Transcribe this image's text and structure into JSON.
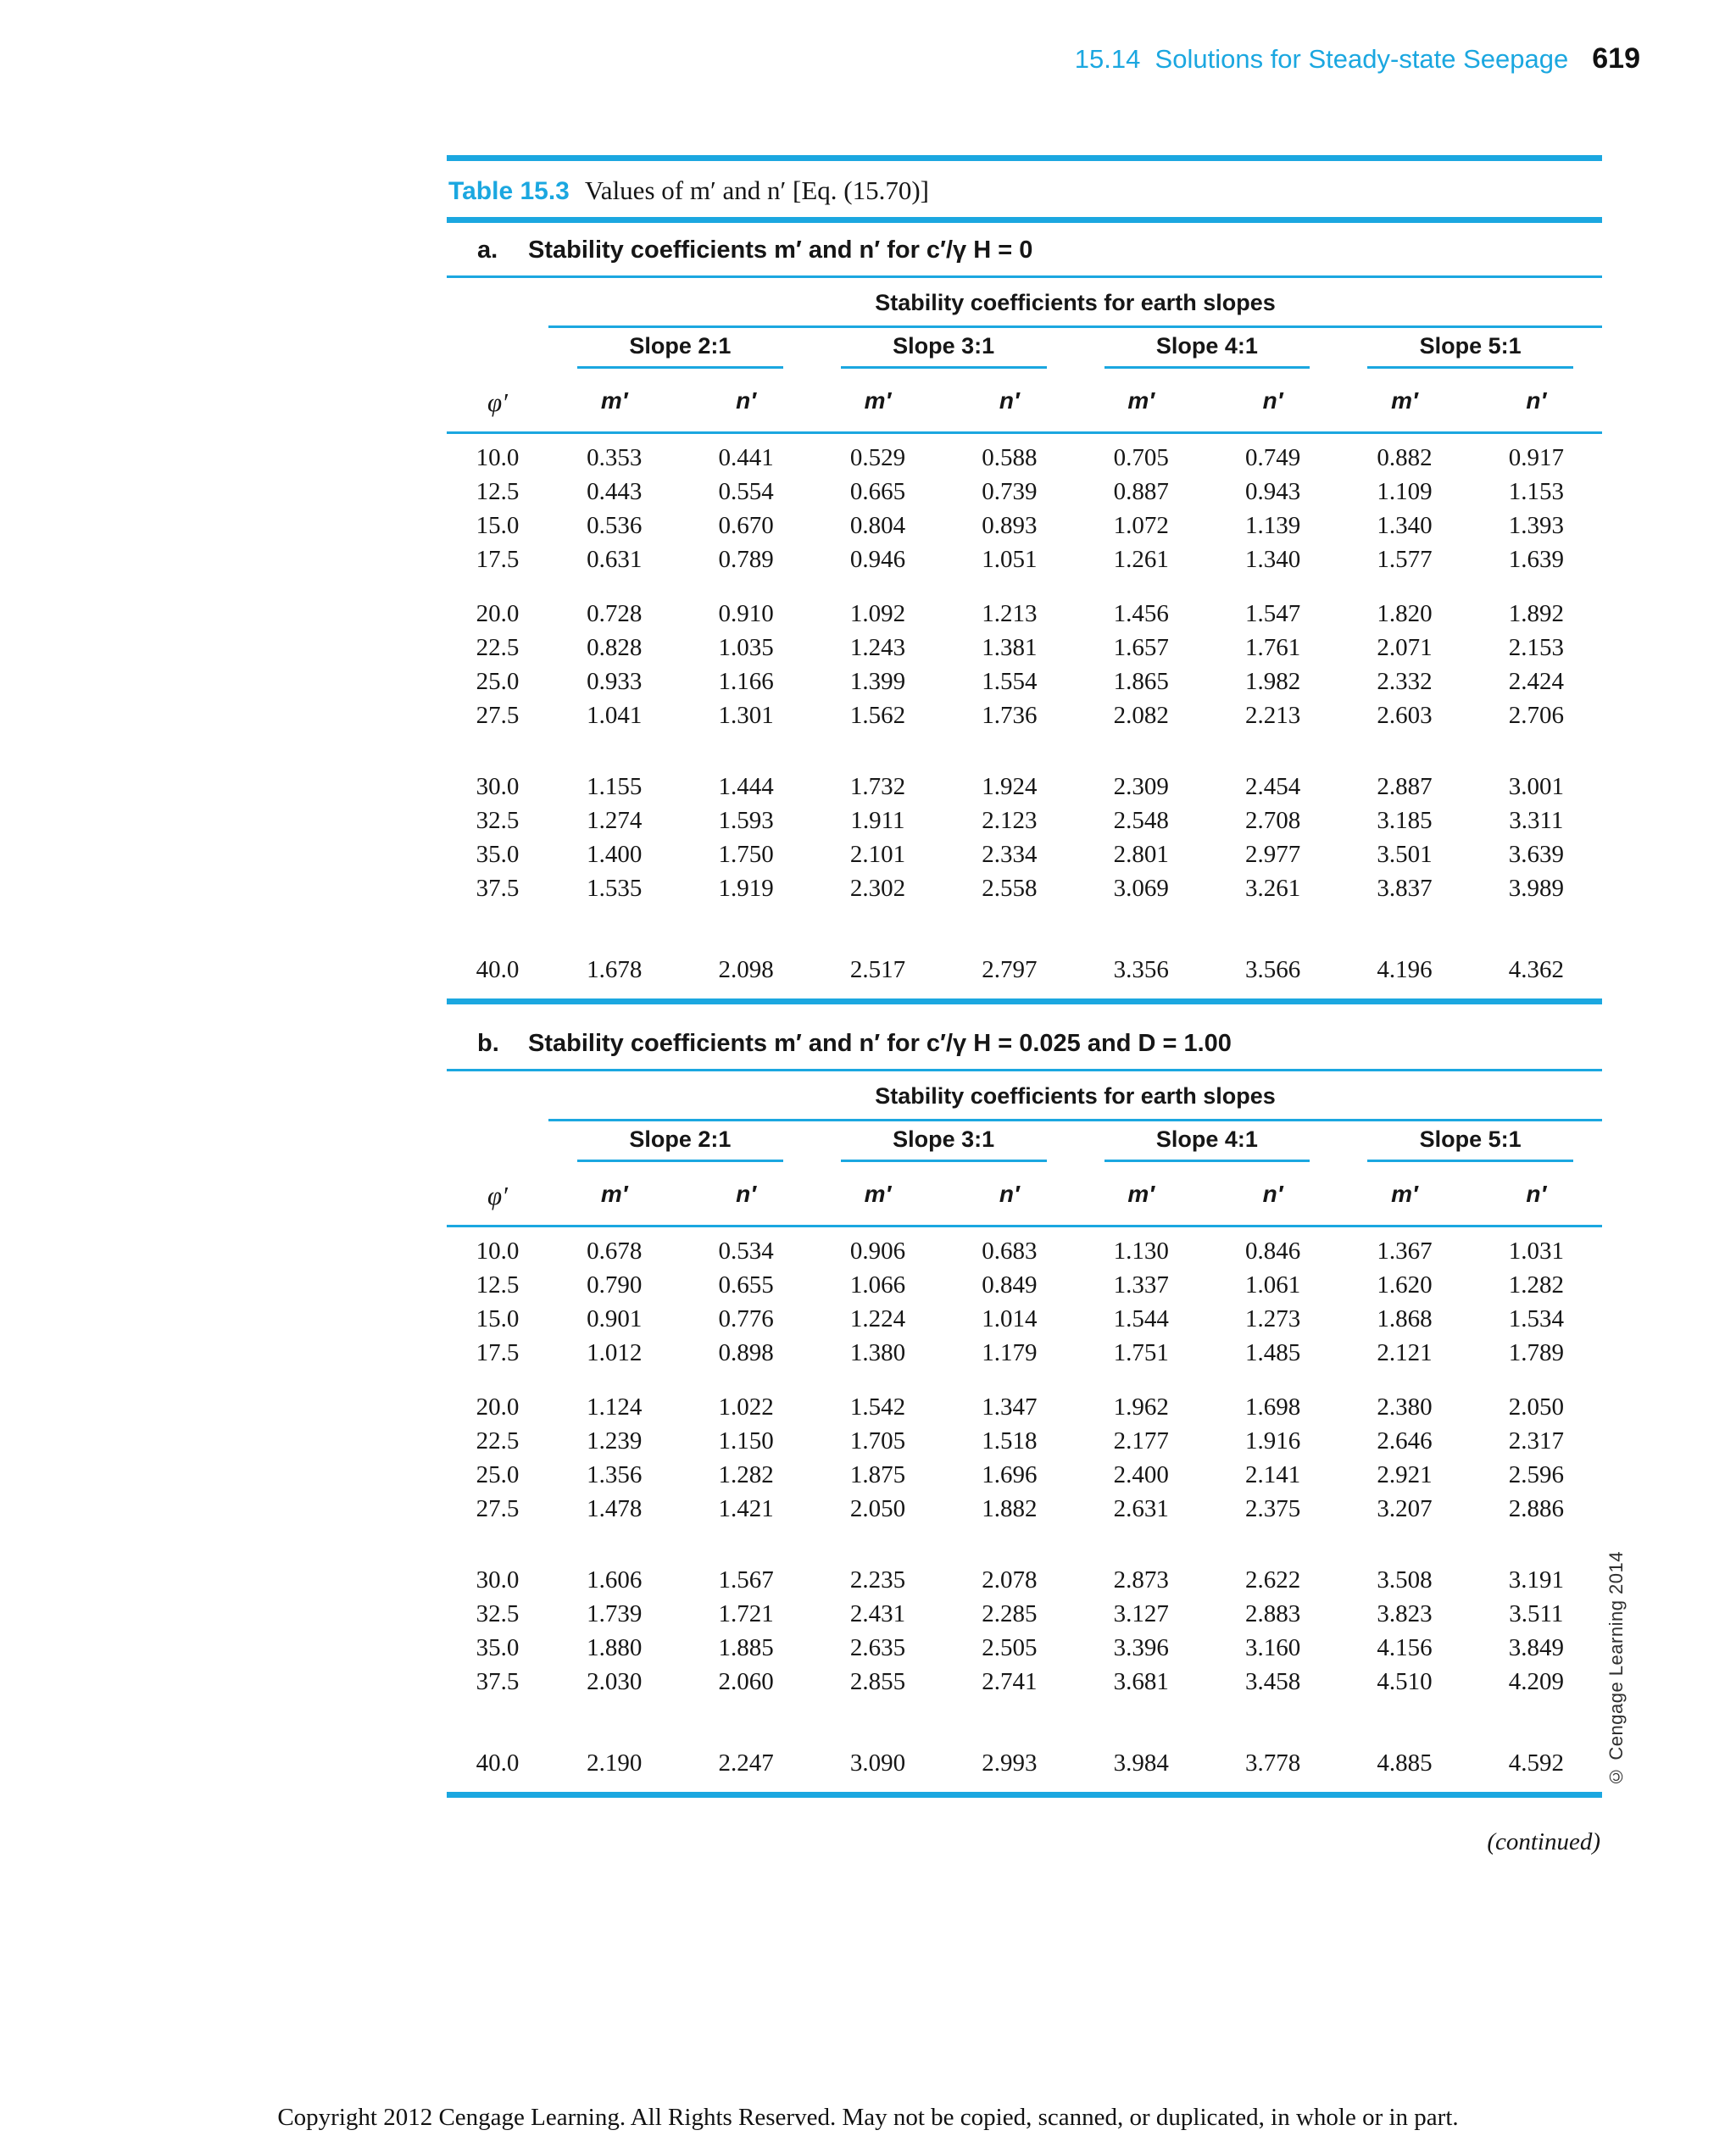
{
  "page": {
    "header": {
      "title": "15.14  Solutions for Steady-state Seepage",
      "page_number": "619"
    },
    "caption": {
      "label": "Table 15.3",
      "text": "Values of m′ and n′ [Eq. (15.70)]"
    },
    "continued": "(continued)",
    "copyright_vertical": "© Cengage Learning 2014",
    "footer": "Copyright 2012 Cengage Learning. All Rights Reserved. May not be copied, scanned, or duplicated, in whole or in part.",
    "accent_color": "#1ba7e0"
  },
  "tables": [
    {
      "heading_label": "a.",
      "heading": "Stability coefficients m′ and n′ for c′/γ H = 0",
      "span_header": "Stability coefficients for earth slopes",
      "slope_headers": [
        "Slope 2:1",
        "Slope 3:1",
        "Slope 4:1",
        "Slope 5:1"
      ],
      "phi_header": "φ′",
      "col_headers": [
        "m′",
        "n′",
        "m′",
        "n′",
        "m′",
        "n′",
        "m′",
        "n′"
      ],
      "row_groups": [
        {
          "rows": [
            [
              "10.0",
              "0.353",
              "0.441",
              "0.529",
              "0.588",
              "0.705",
              "0.749",
              "0.882",
              "0.917"
            ],
            [
              "12.5",
              "0.443",
              "0.554",
              "0.665",
              "0.739",
              "0.887",
              "0.943",
              "1.109",
              "1.153"
            ],
            [
              "15.0",
              "0.536",
              "0.670",
              "0.804",
              "0.893",
              "1.072",
              "1.139",
              "1.340",
              "1.393"
            ],
            [
              "17.5",
              "0.631",
              "0.789",
              "0.946",
              "1.051",
              "1.261",
              "1.340",
              "1.577",
              "1.639"
            ]
          ]
        },
        {
          "rows": [
            [
              "20.0",
              "0.728",
              "0.910",
              "1.092",
              "1.213",
              "1.456",
              "1.547",
              "1.820",
              "1.892"
            ],
            [
              "22.5",
              "0.828",
              "1.035",
              "1.243",
              "1.381",
              "1.657",
              "1.761",
              "2.071",
              "2.153"
            ],
            [
              "25.0",
              "0.933",
              "1.166",
              "1.399",
              "1.554",
              "1.865",
              "1.982",
              "2.332",
              "2.424"
            ],
            [
              "27.5",
              "1.041",
              "1.301",
              "1.562",
              "1.736",
              "2.082",
              "2.213",
              "2.603",
              "2.706"
            ]
          ]
        },
        {
          "rows": [
            [
              "30.0",
              "1.155",
              "1.444",
              "1.732",
              "1.924",
              "2.309",
              "2.454",
              "2.887",
              "3.001"
            ],
            [
              "32.5",
              "1.274",
              "1.593",
              "1.911",
              "2.123",
              "2.548",
              "2.708",
              "3.185",
              "3.311"
            ],
            [
              "35.0",
              "1.400",
              "1.750",
              "2.101",
              "2.334",
              "2.801",
              "2.977",
              "3.501",
              "3.639"
            ],
            [
              "37.5",
              "1.535",
              "1.919",
              "2.302",
              "2.558",
              "3.069",
              "3.261",
              "3.837",
              "3.989"
            ]
          ]
        },
        {
          "rows": [
            [
              "40.0",
              "1.678",
              "2.098",
              "2.517",
              "2.797",
              "3.356",
              "3.566",
              "4.196",
              "4.362"
            ]
          ]
        }
      ]
    },
    {
      "heading_label": "b.",
      "heading": "Stability coefficients m′ and n′ for c′/γ H = 0.025 and D = 1.00",
      "span_header": "Stability coefficients for earth slopes",
      "slope_headers": [
        "Slope 2:1",
        "Slope 3:1",
        "Slope 4:1",
        "Slope 5:1"
      ],
      "phi_header": "φ′",
      "col_headers": [
        "m′",
        "n′",
        "m′",
        "n′",
        "m′",
        "n′",
        "m′",
        "n′"
      ],
      "row_groups": [
        {
          "rows": [
            [
              "10.0",
              "0.678",
              "0.534",
              "0.906",
              "0.683",
              "1.130",
              "0.846",
              "1.367",
              "1.031"
            ],
            [
              "12.5",
              "0.790",
              "0.655",
              "1.066",
              "0.849",
              "1.337",
              "1.061",
              "1.620",
              "1.282"
            ],
            [
              "15.0",
              "0.901",
              "0.776",
              "1.224",
              "1.014",
              "1.544",
              "1.273",
              "1.868",
              "1.534"
            ],
            [
              "17.5",
              "1.012",
              "0.898",
              "1.380",
              "1.179",
              "1.751",
              "1.485",
              "2.121",
              "1.789"
            ]
          ]
        },
        {
          "rows": [
            [
              "20.0",
              "1.124",
              "1.022",
              "1.542",
              "1.347",
              "1.962",
              "1.698",
              "2.380",
              "2.050"
            ],
            [
              "22.5",
              "1.239",
              "1.150",
              "1.705",
              "1.518",
              "2.177",
              "1.916",
              "2.646",
              "2.317"
            ],
            [
              "25.0",
              "1.356",
              "1.282",
              "1.875",
              "1.696",
              "2.400",
              "2.141",
              "2.921",
              "2.596"
            ],
            [
              "27.5",
              "1.478",
              "1.421",
              "2.050",
              "1.882",
              "2.631",
              "2.375",
              "3.207",
              "2.886"
            ]
          ]
        },
        {
          "rows": [
            [
              "30.0",
              "1.606",
              "1.567",
              "2.235",
              "2.078",
              "2.873",
              "2.622",
              "3.508",
              "3.191"
            ],
            [
              "32.5",
              "1.739",
              "1.721",
              "2.431",
              "2.285",
              "3.127",
              "2.883",
              "3.823",
              "3.511"
            ],
            [
              "35.0",
              "1.880",
              "1.885",
              "2.635",
              "2.505",
              "3.396",
              "3.160",
              "4.156",
              "3.849"
            ],
            [
              "37.5",
              "2.030",
              "2.060",
              "2.855",
              "2.741",
              "3.681",
              "3.458",
              "4.510",
              "4.209"
            ]
          ]
        },
        {
          "rows": [
            [
              "40.0",
              "2.190",
              "2.247",
              "3.090",
              "2.993",
              "3.984",
              "3.778",
              "4.885",
              "4.592"
            ]
          ]
        }
      ]
    }
  ]
}
